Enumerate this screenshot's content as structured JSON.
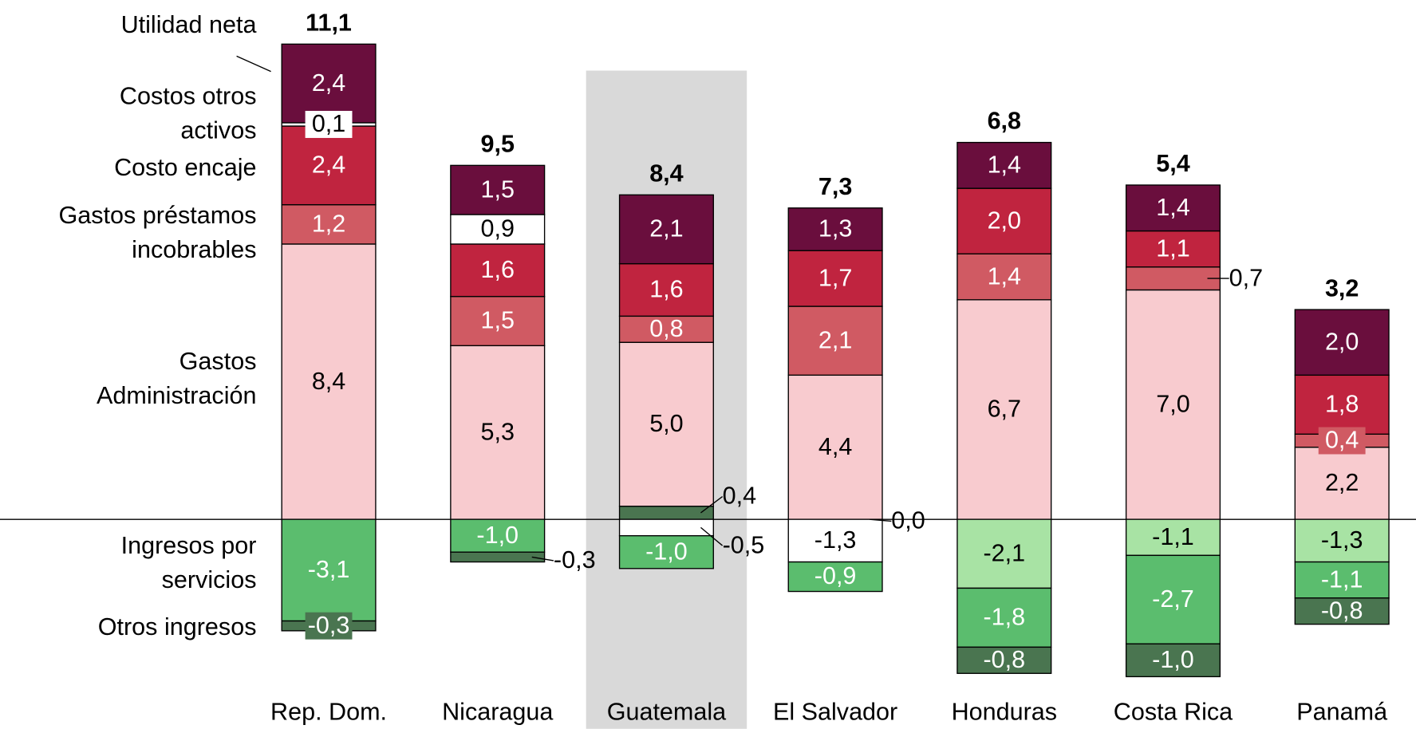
{
  "chart_data": {
    "type": "stacked_bar",
    "categories": [
      "Rep. Dom.",
      "Nicaragua",
      "Guatemala",
      "El Salvador",
      "Honduras",
      "Costa Rica",
      "Panamá"
    ],
    "highlight": "Guatemala",
    "series": [
      {
        "name": "Gastos Administración",
        "color": "#f8cbcf",
        "values": [
          8.4,
          5.3,
          5.0,
          4.4,
          6.7,
          7.0,
          2.2
        ],
        "value_labels": [
          "8,4",
          "5,3",
          "5,0",
          "4,4",
          "6,7",
          "7,0",
          "2,2"
        ]
      },
      {
        "name": "Gastos préstamos incobrables",
        "color": "#d05a63",
        "values": [
          1.2,
          1.5,
          0.8,
          2.1,
          1.4,
          0.7,
          0.4
        ],
        "value_labels": [
          "1,2",
          "1,5",
          "0,8",
          "2,1",
          "1,4",
          "0,7",
          "0,4"
        ]
      },
      {
        "name": "Costo encaje",
        "color": "#c0243f",
        "values": [
          2.4,
          1.6,
          1.6,
          1.7,
          2.0,
          1.1,
          1.8
        ],
        "value_labels": [
          "2,4",
          "1,6",
          "1,6",
          "1,7",
          "2,0",
          "1,1",
          "1,8"
        ]
      },
      {
        "name": "Costos otros activos",
        "color": "#ffffff",
        "values": [
          0.1,
          0.9,
          null,
          null,
          null,
          null,
          null
        ],
        "value_labels": [
          "0,1",
          "0,9",
          null,
          null,
          null,
          null,
          null
        ]
      },
      {
        "name": "Utilidad neta",
        "color": "#6a0e3d",
        "values": [
          2.4,
          1.5,
          2.1,
          1.3,
          1.4,
          1.4,
          2.0
        ],
        "value_labels": [
          "2,4",
          "1,5",
          "2,1",
          "1,3",
          "1,4",
          "1,4",
          "2,0"
        ]
      },
      {
        "color": "#ffffff",
        "values": [
          null,
          null,
          -0.5,
          -1.3,
          null,
          null,
          null
        ],
        "value_labels": [
          null,
          null,
          "-0,5",
          "-1,3",
          null,
          null,
          null
        ]
      },
      {
        "color": "#a8e3a4",
        "values": [
          null,
          null,
          null,
          null,
          -2.1,
          -1.1,
          -1.3
        ],
        "value_labels": [
          null,
          null,
          null,
          null,
          "-2,1",
          "-1,1",
          "-1,3"
        ]
      },
      {
        "name": "Ingresos por servicios",
        "color": "#5bbd6e",
        "values": [
          -3.1,
          -1.0,
          -1.0,
          -0.9,
          -1.8,
          -2.7,
          -1.1
        ],
        "value_labels": [
          "-3,1",
          "-1,0",
          "-1,0",
          "-0,9",
          "-1,8",
          "-2,7",
          "-1,1"
        ]
      },
      {
        "name": "Otros ingresos",
        "color": "#4a7550",
        "values": [
          -0.3,
          -0.3,
          0.4,
          0.0,
          -0.8,
          -1.0,
          -0.8
        ],
        "value_labels": [
          "-0,3",
          "-0,3",
          "0,4",
          "0,0",
          "-0,8",
          "-1,0",
          "-0,8"
        ]
      }
    ],
    "totals": {
      "values": [
        11.1,
        9.5,
        8.4,
        7.3,
        6.8,
        5.4,
        3.2
      ],
      "value_labels": [
        "11,1",
        "9,5",
        "8,4",
        "7,3",
        "6,8",
        "5,4",
        "3,2"
      ]
    }
  }
}
